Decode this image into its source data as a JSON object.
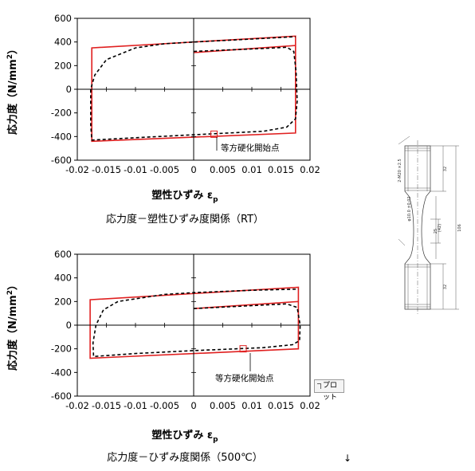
{
  "colors": {
    "frame": "#e02020",
    "curve": "#000000",
    "axis": "#000000"
  },
  "charts": [
    {
      "id": "rt",
      "ylabel_pre": "応力度（N/mm",
      "ylabel_sup": "2",
      "ylabel_post": "）",
      "xlabel": "塑性ひずみ ε",
      "xlabel_sub": "p",
      "caption": "応力度－塑性ひずみ度関係（RT）",
      "annotation": "等方硬化開始点",
      "yticks": [
        "600",
        "400",
        "200",
        "0",
        "-200",
        "-400",
        "-600"
      ],
      "xticks": [
        "-0.02",
        "-0.015",
        "-0.01",
        "-0.005",
        "0",
        "0.005",
        "0.01",
        "0.015",
        "0.02"
      ]
    },
    {
      "id": "500c",
      "ylabel_pre": "応力度（N/mm",
      "ylabel_sup": "2",
      "ylabel_post": "）",
      "xlabel": "塑性ひずみ ε",
      "xlabel_sub": "p",
      "caption": "応力度－ひずみ度関係（500℃）",
      "annotation": "等方硬化開始点",
      "yticks": [
        "600",
        "400",
        "200",
        "0",
        "-200",
        "-400",
        "-600"
      ],
      "xticks": [
        "-0.02",
        "-0.015",
        "-0.01",
        "-0.005",
        "0",
        "0.005",
        "0.01",
        "0.015",
        "0.02"
      ]
    }
  ],
  "chart_data": [
    {
      "type": "line",
      "title": "応力度－塑性ひずみ度関係（RT）",
      "xlabel": "塑性ひずみ εp",
      "ylabel": "応力度（N/mm2）",
      "xlim": [
        -0.02,
        0.02
      ],
      "ylim": [
        -600,
        600
      ],
      "grid": false,
      "series": [
        {
          "style": "solid-red",
          "points": [
            [
              0,
              310
            ],
            [
              0.0175,
              370
            ],
            [
              0.0175,
              -370
            ],
            [
              -0.0175,
              -440
            ],
            [
              -0.0175,
              350
            ],
            [
              0.0175,
              450
            ],
            [
              0.0175,
              370
            ]
          ]
        },
        {
          "style": "dashed-black",
          "points": [
            [
              0,
              320
            ],
            [
              0.012,
              345
            ],
            [
              0.016,
              355
            ],
            [
              0.0172,
              320
            ],
            [
              0.0176,
              150
            ],
            [
              0.0178,
              -100
            ],
            [
              0.0175,
              -250
            ],
            [
              0.016,
              -320
            ],
            [
              0.012,
              -355
            ],
            [
              0.004,
              -375
            ],
            [
              0,
              -385
            ],
            [
              -0.01,
              -410
            ],
            [
              -0.0175,
              -430
            ],
            [
              -0.0177,
              -300
            ],
            [
              -0.0177,
              0
            ],
            [
              -0.017,
              120
            ],
            [
              -0.015,
              250
            ],
            [
              -0.01,
              350
            ],
            [
              -0.005,
              385
            ],
            [
              0,
              400
            ],
            [
              0.01,
              425
            ],
            [
              0.0175,
              445
            ]
          ]
        }
      ],
      "marker": {
        "x": 0.0035,
        "y": -380,
        "label": "等方硬化開始点"
      }
    },
    {
      "type": "line",
      "title": "応力度－ひずみ度関係（500℃）",
      "xlabel": "塑性ひずみ εp",
      "ylabel": "応力度（N/mm2）",
      "xlim": [
        -0.02,
        0.02
      ],
      "ylim": [
        -600,
        600
      ],
      "grid": false,
      "series": [
        {
          "style": "solid-red",
          "points": [
            [
              0,
              140
            ],
            [
              0.018,
              200
            ],
            [
              0.018,
              -200
            ],
            [
              -0.0178,
              -280
            ],
            [
              -0.0178,
              215
            ],
            [
              0.018,
              320
            ],
            [
              0.018,
              200
            ]
          ]
        },
        {
          "style": "dashed-black",
          "points": [
            [
              0,
              140
            ],
            [
              0.01,
              165
            ],
            [
              0.016,
              180
            ],
            [
              0.0178,
              150
            ],
            [
              0.0183,
              0
            ],
            [
              0.0182,
              -130
            ],
            [
              0.017,
              -165
            ],
            [
              0.012,
              -190
            ],
            [
              0.005,
              -205
            ],
            [
              0,
              -215
            ],
            [
              -0.01,
              -240
            ],
            [
              -0.0172,
              -265
            ],
            [
              -0.0173,
              -150
            ],
            [
              -0.0168,
              0
            ],
            [
              -0.0155,
              130
            ],
            [
              -0.013,
              200
            ],
            [
              -0.005,
              260
            ],
            [
              0,
              275
            ],
            [
              0.01,
              295
            ],
            [
              0.018,
              305
            ]
          ]
        }
      ],
      "marker": {
        "x": 0.0085,
        "y": -200,
        "label": "等方硬化開始点"
      }
    }
  ],
  "specimen": {
    "top_label": "2-M20 ×2.5",
    "dim_total": "106",
    "dim_top": "32",
    "dim_gauge": "(42)",
    "dim_neck": "25",
    "dim_bottom": "32",
    "dia_label": "φ10.0 ±0.02"
  },
  "toolbar": {
    "plot_label": "プロット"
  },
  "misc": {
    "cursor_glyph": "↓"
  }
}
